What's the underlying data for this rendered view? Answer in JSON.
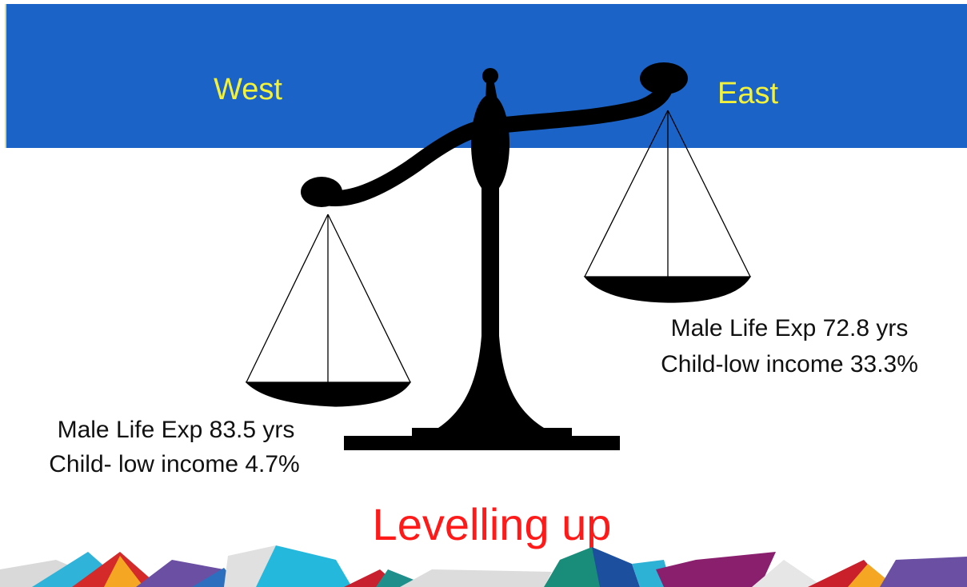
{
  "header": {
    "left": "West",
    "right": "East"
  },
  "west": {
    "lines": [
      "Male Life Exp 83.5 yrs",
      "Child- low income 4.7%"
    ]
  },
  "east": {
    "lines": [
      "Male Life Exp 72.8 yrs",
      "Child-low income 33.3%"
    ]
  },
  "title": "Levelling up"
}
